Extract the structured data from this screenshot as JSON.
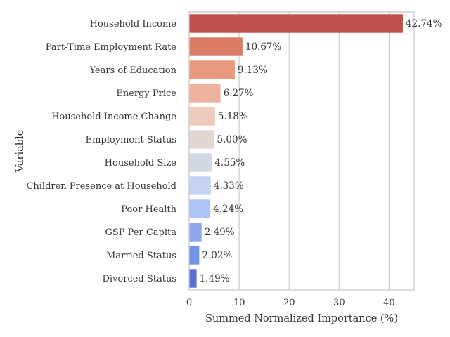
{
  "chart_data": {
    "type": "bar",
    "orientation": "horizontal",
    "title": "",
    "xlabel": "Summed Normalized Importance (%)",
    "ylabel": "Variable",
    "xlim": [
      0,
      45
    ],
    "xticks": [
      0,
      10,
      20,
      30,
      40
    ],
    "grid": "vertical",
    "categories": [
      "Household Income",
      "Part-Time Employment Rate",
      "Years of Education",
      "Energy Price",
      "Household Income Change",
      "Employment Status",
      "Household Size",
      "Children Presence at Household",
      "Poor Health",
      "GSP Per Capita",
      "Married Status",
      "Divorced Status"
    ],
    "values": [
      42.74,
      10.67,
      9.13,
      6.27,
      5.18,
      5.0,
      4.55,
      4.33,
      4.24,
      2.49,
      2.02,
      1.49
    ],
    "value_labels": [
      "42.74%",
      "10.67%",
      "9.13%",
      "6.27%",
      "5.18%",
      "5.00%",
      "4.55%",
      "4.33%",
      "4.24%",
      "2.49%",
      "2.02%",
      "1.49%"
    ],
    "colors": [
      "#c0504d",
      "#d97b67",
      "#e89a80",
      "#edb39e",
      "#eecbbd",
      "#e3d6d3",
      "#d3d9e4",
      "#c4d3f2",
      "#aec4f6",
      "#8ea9ee",
      "#7292e2",
      "#5a6fcf"
    ]
  }
}
